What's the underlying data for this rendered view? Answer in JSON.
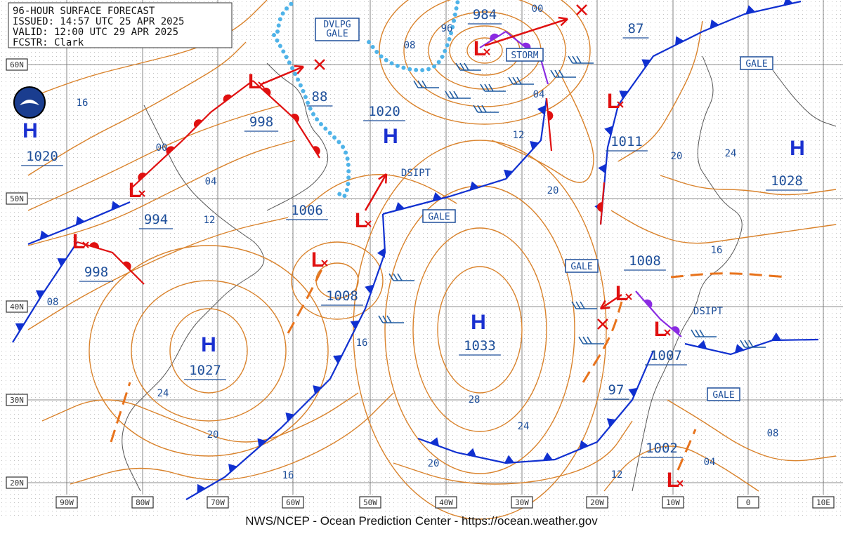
{
  "header": {
    "lines": [
      "96-HOUR SURFACE FORECAST",
      "ISSUED: 14:57 UTC 25 APR 2025",
      "VALID:  12:00 UTC 29 APR 2025",
      "FCSTR:  Clark"
    ]
  },
  "grid": {
    "latitudes": [
      "60N",
      "50N",
      "40N",
      "30N",
      "20N"
    ],
    "longitudes": [
      "90W",
      "80W",
      "70W",
      "60W",
      "50W",
      "40W",
      "30W",
      "20W",
      "10W",
      "0",
      "10E"
    ]
  },
  "high_symbol": "H",
  "low_symbol": "L",
  "center_pressures": [
    "1020",
    "998",
    "994",
    "998",
    "1006",
    "1008",
    "1020",
    "1033",
    "1027",
    "984",
    "1011",
    "1008",
    "1007",
    "1002",
    "1028",
    "88",
    "87",
    "97"
  ],
  "isobar_labels": [
    "16",
    "00",
    "04",
    "12",
    "08",
    "24",
    "20",
    "16",
    "16",
    "28",
    "24",
    "20",
    "20",
    "12",
    "04",
    "08",
    "96",
    "00",
    "20",
    "24",
    "16",
    "08",
    "04",
    "12"
  ],
  "boxed_labels": [
    "DVLPG GALE",
    "STORM",
    "GALE",
    "GALE",
    "GALE",
    "GALE"
  ],
  "plain_labels": [
    "DSIPT",
    "DSIPT"
  ],
  "footer": "NWS/NCEP - Ocean Prediction Center - https://ocean.weather.gov"
}
